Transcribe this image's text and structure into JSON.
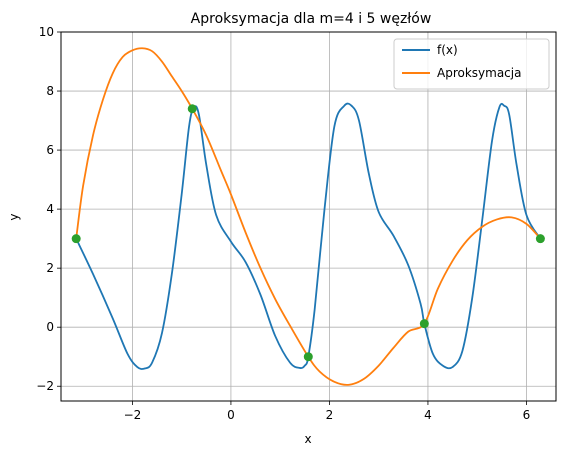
{
  "chart_data": {
    "type": "line",
    "title": "Aproksymacja dla m=4 i 5 węzłów",
    "xlabel": "x",
    "ylabel": "y",
    "xlim": [
      -3.45,
      6.6
    ],
    "ylim": [
      -2.5,
      10
    ],
    "xticks": [
      -2,
      0,
      2,
      4,
      6
    ],
    "yticks": [
      -2,
      0,
      2,
      4,
      6,
      8,
      10
    ],
    "grid": true,
    "legend_position": "top-right",
    "colors": {
      "fx": "#1f77b4",
      "approx": "#ff7f0e",
      "nodes": "#2ca02c",
      "grid": "#b0b0b0"
    },
    "series": [
      {
        "name": "f(x)",
        "x": [
          -3.1416,
          -2.8,
          -2.4,
          -2.1,
          -1.9,
          -1.75,
          -1.6,
          -1.4,
          -1.2,
          -1.0,
          -0.85,
          -0.75,
          -0.65,
          -0.5,
          -0.3,
          0.0,
          0.3,
          0.6,
          0.9,
          1.2,
          1.4,
          1.5,
          1.5708,
          1.7,
          1.9,
          2.1,
          2.3,
          2.45,
          2.6,
          2.8,
          3.0,
          3.3,
          3.6,
          3.85,
          3.927,
          4.1,
          4.3,
          4.5,
          4.7,
          4.9,
          5.1,
          5.3,
          5.45,
          5.55,
          5.65,
          5.8,
          6.0,
          6.2832
        ],
        "y": [
          3.0,
          1.8,
          0.3,
          -0.9,
          -1.35,
          -1.4,
          -1.2,
          -0.2,
          1.8,
          4.5,
          6.8,
          7.45,
          7.2,
          5.5,
          3.8,
          2.9,
          2.2,
          1.1,
          -0.3,
          -1.2,
          -1.38,
          -1.3,
          -1.0,
          0.6,
          4.0,
          6.8,
          7.5,
          7.5,
          7.0,
          5.2,
          3.9,
          3.1,
          2.1,
          0.8,
          0.12,
          -0.9,
          -1.3,
          -1.35,
          -0.8,
          1.0,
          3.6,
          6.3,
          7.45,
          7.5,
          7.2,
          5.5,
          3.8,
          3.0
        ]
      },
      {
        "name": "Aproksymacja",
        "x": [
          -3.1416,
          -3.0,
          -2.8,
          -2.6,
          -2.4,
          -2.2,
          -2.0,
          -1.8,
          -1.6,
          -1.4,
          -1.2,
          -1.0,
          -0.7854,
          -0.5,
          -0.2,
          0.0,
          0.3,
          0.6,
          0.9,
          1.2,
          1.5708,
          1.8,
          2.1,
          2.4,
          2.7,
          3.0,
          3.3,
          3.6,
          3.927,
          4.2,
          4.5,
          4.8,
          5.1,
          5.4,
          5.7,
          6.0,
          6.2832
        ],
        "y": [
          3.0,
          4.8,
          6.5,
          7.7,
          8.6,
          9.15,
          9.38,
          9.45,
          9.35,
          9.0,
          8.5,
          8.0,
          7.4,
          6.5,
          5.3,
          4.5,
          3.2,
          2.0,
          0.95,
          0.05,
          -1.0,
          -1.5,
          -1.85,
          -1.95,
          -1.75,
          -1.3,
          -0.7,
          -0.15,
          0.12,
          1.3,
          2.25,
          2.95,
          3.4,
          3.65,
          3.72,
          3.5,
          3.0
        ]
      }
    ],
    "nodes": {
      "x": [
        -3.1416,
        -0.7854,
        1.5708,
        3.927,
        6.2832
      ],
      "y": [
        3.0,
        7.4,
        -1.0,
        0.12,
        3.0
      ]
    }
  }
}
